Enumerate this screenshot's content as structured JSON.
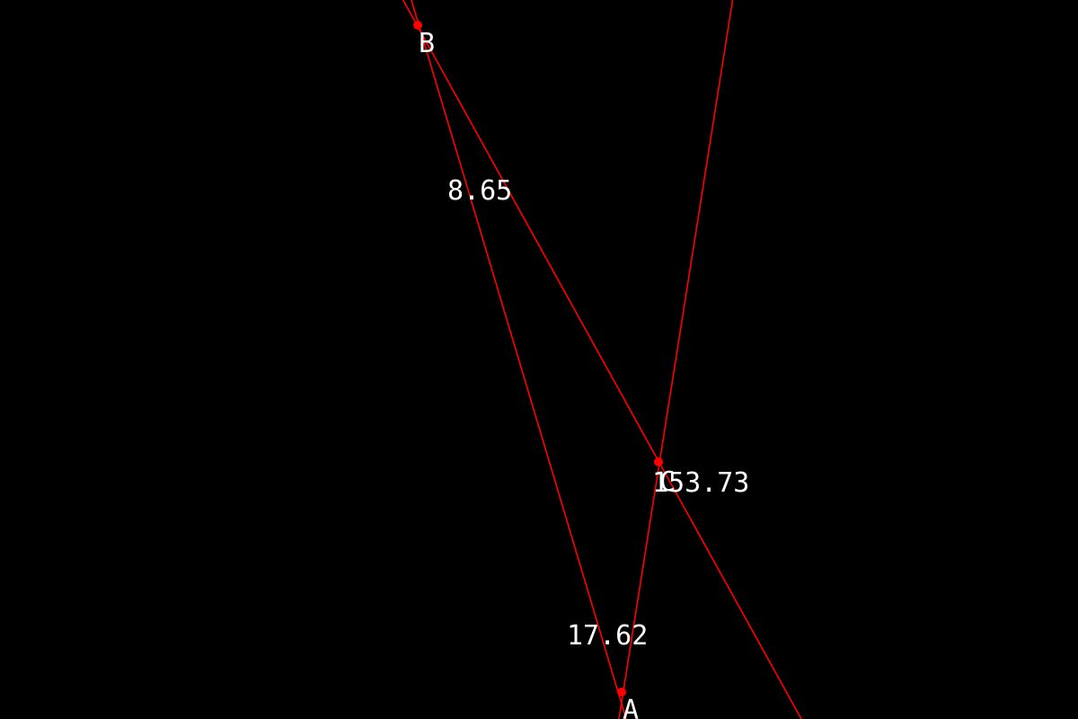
{
  "colors": {
    "background": "#000000",
    "lines": "#ff0000",
    "points": "#ff0000",
    "text": "#ffffff"
  },
  "points": {
    "A": {
      "label": "A"
    },
    "B": {
      "label": "B"
    },
    "C": {
      "label": "C"
    }
  },
  "angles": {
    "at_A": "17.62",
    "at_B": "8.65",
    "at_C": "153.73"
  }
}
